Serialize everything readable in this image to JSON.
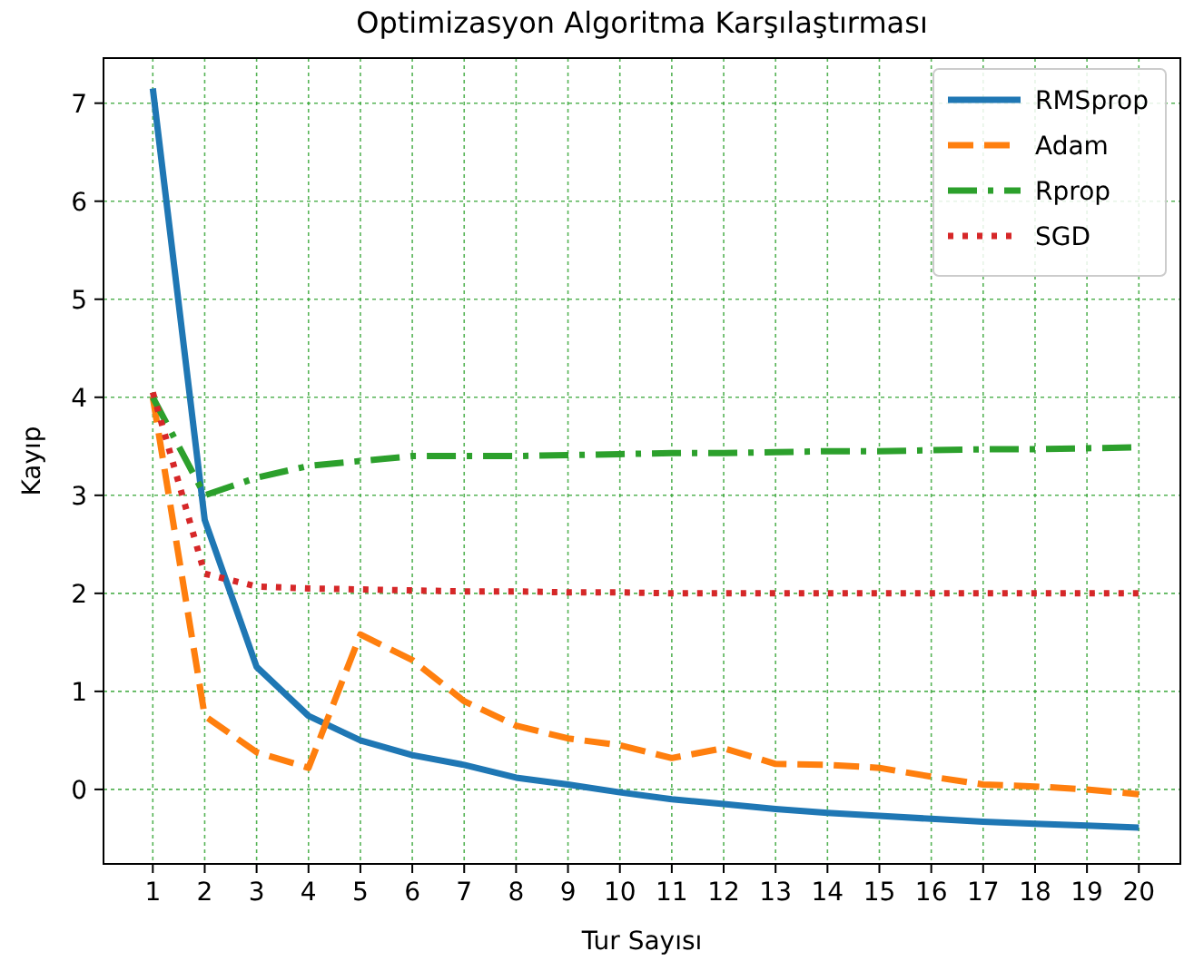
{
  "chart_data": {
    "type": "line",
    "title": "Optimizasyon Algoritma Karşılaştırması",
    "xlabel": "Tur Sayısı",
    "ylabel": "Kayıp",
    "x": [
      1,
      2,
      3,
      4,
      5,
      6,
      7,
      8,
      9,
      10,
      11,
      12,
      13,
      14,
      15,
      16,
      17,
      18,
      19,
      20
    ],
    "series": [
      {
        "name": "RMSprop",
        "color": "#1f77b4",
        "line_style": "solid",
        "values": [
          7.15,
          2.75,
          1.25,
          0.75,
          0.5,
          0.35,
          0.25,
          0.12,
          0.05,
          -0.03,
          -0.1,
          -0.15,
          -0.2,
          -0.24,
          -0.27,
          -0.3,
          -0.33,
          -0.35,
          -0.37,
          -0.39
        ]
      },
      {
        "name": "Adam",
        "color": "#ff7f0e",
        "line_style": "dashed",
        "values": [
          4.0,
          0.75,
          0.38,
          0.22,
          1.58,
          1.32,
          0.9,
          0.65,
          0.52,
          0.45,
          0.32,
          0.42,
          0.26,
          0.25,
          0.22,
          0.13,
          0.05,
          0.03,
          0.0,
          -0.05
        ]
      },
      {
        "name": "Rprop",
        "color": "#2ca02c",
        "line_style": "dashdot",
        "values": [
          4.0,
          3.0,
          3.18,
          3.3,
          3.35,
          3.4,
          3.4,
          3.4,
          3.41,
          3.42,
          3.43,
          3.43,
          3.44,
          3.45,
          3.45,
          3.46,
          3.47,
          3.47,
          3.48,
          3.49
        ]
      },
      {
        "name": "SGD",
        "color": "#d62728",
        "line_style": "dotted",
        "values": [
          4.05,
          2.2,
          2.07,
          2.05,
          2.04,
          2.03,
          2.02,
          2.02,
          2.01,
          2.01,
          2.0,
          2.0,
          2.0,
          2.0,
          2.0,
          2.0,
          2.0,
          2.0,
          2.0,
          2.0
        ]
      }
    ],
    "xlim": [
      0.05,
      20.8
    ],
    "xticks": [
      1,
      2,
      3,
      4,
      5,
      6,
      7,
      8,
      9,
      10,
      11,
      12,
      13,
      14,
      15,
      16,
      17,
      18,
      19,
      20
    ],
    "ylim": [
      -0.76,
      7.46
    ],
    "yticks": [
      0,
      1,
      2,
      3,
      4,
      5,
      6,
      7
    ],
    "grid": true,
    "legend": "top right"
  }
}
